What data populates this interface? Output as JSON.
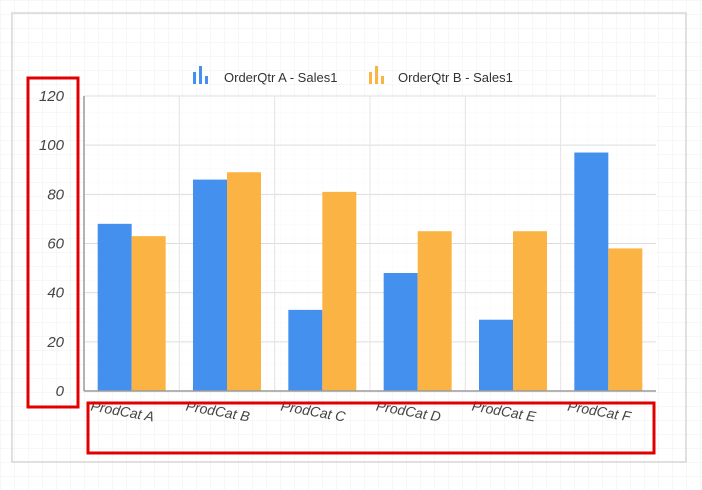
{
  "chart_data": {
    "type": "bar",
    "categories": [
      "ProdCat A",
      "ProdCat B",
      "ProdCat C",
      "ProdCat D",
      "ProdCat E",
      "ProdCat F"
    ],
    "series": [
      {
        "name": "OrderQtr A - Sales1",
        "color": "#4490ef",
        "values": [
          68,
          86,
          33,
          48,
          29,
          97
        ]
      },
      {
        "name": "OrderQtr B - Sales1",
        "color": "#fbb443",
        "values": [
          63,
          89,
          81,
          65,
          65,
          58
        ]
      }
    ],
    "yticks": [
      "0",
      "20",
      "40",
      "60",
      "80",
      "100",
      "120"
    ],
    "ylim": [
      0,
      120
    ],
    "grid": true,
    "legend_position": "top-center",
    "highlight_color": "#e00000",
    "background_grid_color": "#e6e6e6"
  }
}
